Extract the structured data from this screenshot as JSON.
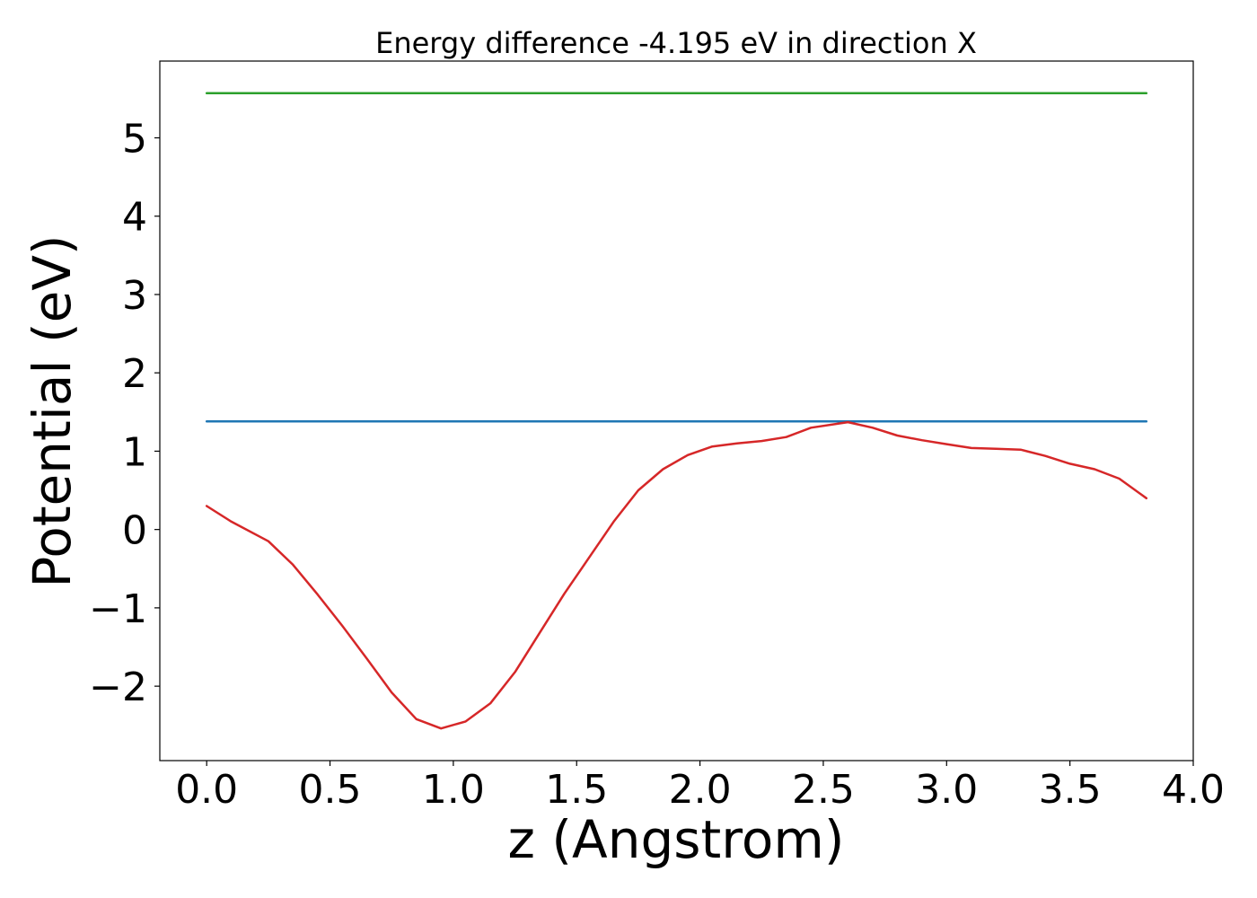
{
  "chart_data": {
    "type": "line",
    "title": "Energy difference -4.195 eV in direction X",
    "xlabel": "z (Angstrom)",
    "ylabel": "Potential (eV)",
    "xlim": [
      -0.19,
      4.0
    ],
    "ylim": [
      -2.95,
      5.98
    ],
    "x_ticks": [
      0.0,
      0.5,
      1.0,
      1.5,
      2.0,
      2.5,
      3.0,
      3.5,
      4.0
    ],
    "x_tick_labels": [
      "0.0",
      "0.5",
      "1.0",
      "1.5",
      "2.0",
      "2.5",
      "3.0",
      "3.5",
      "4.0"
    ],
    "y_ticks": [
      -2,
      -1,
      0,
      1,
      2,
      3,
      4,
      5
    ],
    "y_tick_labels": [
      "−2",
      "−1",
      "0",
      "1",
      "2",
      "3",
      "4",
      "5"
    ],
    "grid": false,
    "series": [
      {
        "color": "#2ca02c",
        "x": [
          0.0,
          3.81
        ],
        "y": [
          5.57,
          5.57
        ]
      },
      {
        "color": "#1f77b4",
        "x": [
          0.0,
          3.81
        ],
        "y": [
          1.38,
          1.38
        ]
      },
      {
        "color": "#d62728",
        "x": [
          0.0,
          0.1,
          0.25,
          0.35,
          0.45,
          0.55,
          0.65,
          0.75,
          0.85,
          0.95,
          1.05,
          1.15,
          1.25,
          1.35,
          1.45,
          1.55,
          1.65,
          1.75,
          1.85,
          1.95,
          2.05,
          2.15,
          2.25,
          2.35,
          2.45,
          2.6,
          2.7,
          2.8,
          2.9,
          3.0,
          3.1,
          3.2,
          3.3,
          3.4,
          3.5,
          3.6,
          3.7,
          3.81
        ],
        "y": [
          0.3,
          0.1,
          -0.15,
          -0.45,
          -0.83,
          -1.23,
          -1.65,
          -2.08,
          -2.42,
          -2.54,
          -2.45,
          -2.22,
          -1.82,
          -1.32,
          -0.82,
          -0.36,
          0.1,
          0.5,
          0.77,
          0.95,
          1.06,
          1.1,
          1.13,
          1.18,
          1.3,
          1.37,
          1.3,
          1.2,
          1.14,
          1.09,
          1.04,
          1.03,
          1.02,
          0.94,
          0.84,
          0.77,
          0.65,
          0.4
        ]
      }
    ]
  }
}
